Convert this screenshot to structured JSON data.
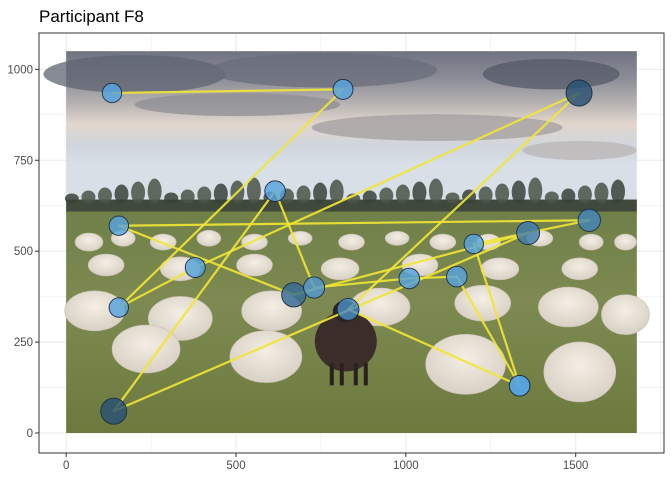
{
  "chart_data": {
    "type": "scatter",
    "title": "Participant F8",
    "xlabel": "",
    "ylabel": "",
    "xlim": [
      -80,
      1760
    ],
    "ylim": [
      -55,
      1100
    ],
    "x_ticks": [
      0,
      500,
      1000,
      1500
    ],
    "y_ticks": [
      0,
      250,
      500,
      750,
      1000
    ],
    "x_tick_labels": [
      "0",
      "500",
      "1000",
      "1500"
    ],
    "y_tick_labels": [
      "0",
      "250",
      "500",
      "750",
      "1000"
    ],
    "grid": true,
    "legend": "none",
    "background_image": {
      "description_icon": "sheep-flock-photo",
      "x_range": [
        0,
        1680
      ],
      "y_range": [
        0,
        1050
      ]
    },
    "colors": {
      "scanpath": "#f2e635",
      "point_light": "#5aa9e6",
      "point_dark": "#1c3a57",
      "grid": "#ebebeb",
      "panel_border": "#333333"
    },
    "fixations": [
      {
        "x": 135,
        "y": 935,
        "duration": 0.45
      },
      {
        "x": 815,
        "y": 945,
        "duration": 0.5
      },
      {
        "x": 155,
        "y": 345,
        "duration": 0.45
      },
      {
        "x": 380,
        "y": 455,
        "duration": 0.5
      },
      {
        "x": 1510,
        "y": 935,
        "duration": 1.0
      },
      {
        "x": 830,
        "y": 340,
        "duration": 0.65
      },
      {
        "x": 1335,
        "y": 130,
        "duration": 0.55
      },
      {
        "x": 1200,
        "y": 520,
        "duration": 0.45
      },
      {
        "x": 1540,
        "y": 585,
        "duration": 0.7
      },
      {
        "x": 155,
        "y": 570,
        "duration": 0.45
      },
      {
        "x": 670,
        "y": 380,
        "duration": 0.85
      },
      {
        "x": 1360,
        "y": 550,
        "duration": 0.75
      },
      {
        "x": 140,
        "y": 60,
        "duration": 1.0
      },
      {
        "x": 615,
        "y": 665,
        "duration": 0.55
      },
      {
        "x": 730,
        "y": 400,
        "duration": 0.6
      },
      {
        "x": 1010,
        "y": 425,
        "duration": 0.55
      },
      {
        "x": 1150,
        "y": 430,
        "duration": 0.55
      },
      {
        "x": 1335,
        "y": 130,
        "duration": 0.55
      }
    ]
  }
}
